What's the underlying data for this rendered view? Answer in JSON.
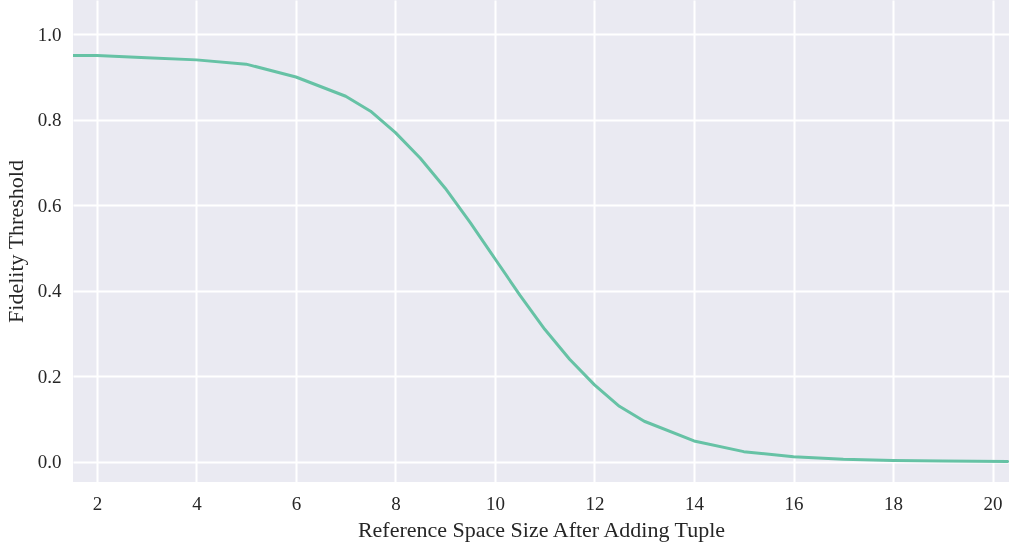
{
  "chart_data": {
    "type": "line",
    "xlabel": "Reference Space Size After Adding Tuple",
    "ylabel": "Fidelity Threshold",
    "x": [
      1.52,
      2,
      3,
      4,
      5,
      6,
      7,
      7.5,
      8,
      8.5,
      9,
      9.5,
      10,
      10.5,
      11,
      11.5,
      12,
      12.5,
      13,
      14,
      15,
      16,
      17,
      18,
      19,
      20.3
    ],
    "series": [
      {
        "color": "#66c2a5",
        "values": [
          0.95,
          0.95,
          0.945,
          0.94,
          0.93,
          0.9,
          0.855,
          0.82,
          0.77,
          0.71,
          0.64,
          0.56,
          0.475,
          0.39,
          0.31,
          0.24,
          0.18,
          0.13,
          0.095,
          0.049,
          0.024,
          0.012,
          0.006,
          0.003,
          0.002,
          0.001
        ]
      }
    ],
    "xlim": [
      1.52,
      20.33
    ],
    "ylim": [
      -0.047,
      1.08
    ],
    "xticks": [
      2,
      4,
      6,
      8,
      10,
      12,
      14,
      16,
      18,
      20
    ],
    "yticks": [
      {
        "value": 0,
        "label": "0.0"
      },
      {
        "value": 0.2,
        "label": "0.2"
      },
      {
        "value": 0.4,
        "label": "0.4"
      },
      {
        "value": 0.6,
        "label": "0.6"
      },
      {
        "value": 0.8,
        "label": "0.8"
      },
      {
        "value": 1,
        "label": "1.0"
      }
    ],
    "grid": true,
    "line_style": "solid"
  }
}
